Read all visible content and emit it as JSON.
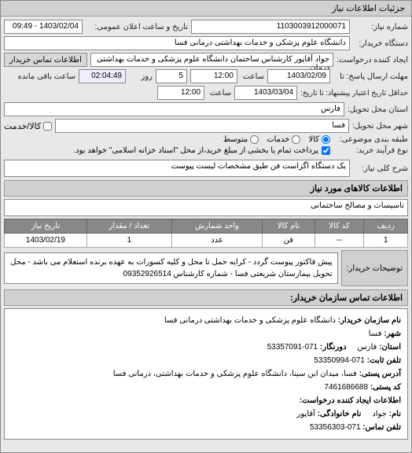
{
  "header": {
    "title": "جزئیات اطلاعات نیاز"
  },
  "fields": {
    "contract_no_label": "شماره نیاز:",
    "contract_no": "1103003912000071",
    "announce_label": "تاریخ و ساعت اعلان عمومی:",
    "announce": "1403/02/04 - 09:49",
    "buyer_org_label": "دستگاه خریدار:",
    "buyer_org": "دانشگاه علوم پزشکی و خدمات بهداشتی درمانی فسا",
    "requester_label": "ایجاد کننده درخواست:",
    "requester": "جواد آقاپور کارشناس ساختمان دانشگاه علوم پزشکی و خدمات بهداشتی درمان",
    "contact_btn": "اطلاعات تماس خریدار",
    "deadline_from_label": "مهلت ارسال پاسخ: تا",
    "deadline_to_label": "حداقل تاریخ اعتبار پیشنهاد: تا تاریخ:",
    "date1": "1403/02/09",
    "time1": "12:00",
    "time_label": "ساعت",
    "days_label": "روز",
    "days": "5",
    "remaining_label": "ساعت باقی مانده",
    "remaining": "02:04:49",
    "date2": "1403/03/04",
    "time2": "12:00",
    "province_label": "استان محل تحویل:",
    "province": "فارس",
    "city_label": "شهر محل تحویل:",
    "city": "فسا",
    "kala_label": "کالا/خدمت",
    "topic_type_label": "طبقه بندی موضوعی:",
    "topic_kala": "کالا",
    "topic_khadamat": "خدمات",
    "buy_type_label": "نوع فرآیند خرید:",
    "buy_type_text": "پرداخت تمام یا بخشی از مبلغ خرید،از محل \"اسناد خزانه اسلامی\" خواهد بود.",
    "desc_label": "شرح کلی نیاز:",
    "desc": "یک دستگاه اگزاست فن طبق مشخصات لیست پیوست"
  },
  "goods_section": {
    "title": "اطلاعات کالاهای مورد نیاز"
  },
  "goods_box": "تاسیسات و مصالح ساختمانی",
  "table": {
    "headers": [
      "ردیف",
      "کد کالا",
      "نام کالا",
      "واحد شمارش",
      "تعداد / مقدار",
      "تاریخ نیاز"
    ],
    "rows": [
      [
        "1",
        "--",
        "فن",
        "عدد",
        "1",
        "1403/02/19"
      ]
    ]
  },
  "notes": {
    "label": "توضیحات خریدار:",
    "text": "پیش فاکتور پیوست گردد - کرایه حمل تا محل و کلیه کسورات به عهده برنده استعلام می باشد - محل تحویل بیمارستان شریعتی فسا - شماره کارشناس 09352926514"
  },
  "contact": {
    "section_title": "اطلاعات تماس سازمان خریدار:",
    "org_name_label": "نام سازمان خریدار:",
    "org_name": "دانشگاه علوم پزشکی و خدمات بهداشتی درمانی فسا",
    "province_label": "استان:",
    "province": "فارس",
    "city_label": "شهر:",
    "city": "فسا",
    "fax_label": "دورنگار:",
    "fax": "071-53357091",
    "phone_label": "تلفن ثابت:",
    "phone": "071-53350994",
    "postal_addr_label": "آدرس پستی:",
    "postal_addr": "فسا، میدان ابن سینا، دانشگاه علوم پزشکی و خدمات بهداشتی، درمانی فسا",
    "postal_code_label": "کد پستی:",
    "postal_code": "7461686688",
    "request_creator_title": "اطلاعات ایجاد کننده درخواست:",
    "creator_name_label": "نام:",
    "creator_name": "جواد",
    "creator_lname_label": "نام خانوادگی:",
    "creator_lname": "آقاپور",
    "creator_phone_label": "تلفن تماس:",
    "creator_phone": "071-53356303"
  }
}
